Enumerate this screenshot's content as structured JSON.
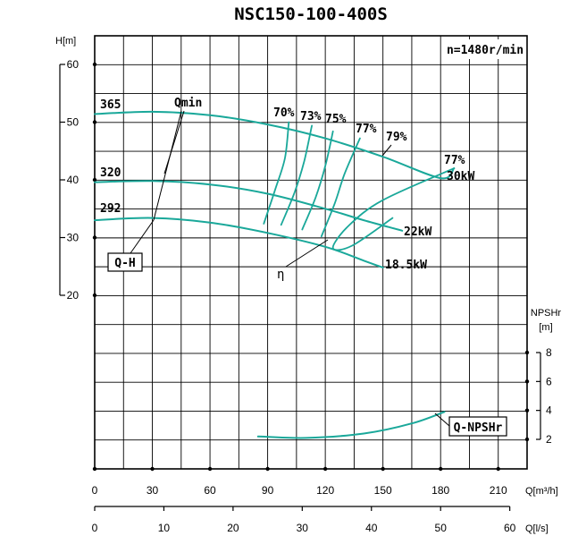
{
  "chart_data": {
    "type": "line",
    "title": "NSC150-100-400S",
    "speed_label": "n=1480r/min",
    "colors": {
      "curve": "#1aa89a",
      "ink": "#000000",
      "background": "#ffffff"
    },
    "x_flow_m3h": {
      "label": "Q[m³/h]",
      "range": [
        0,
        225
      ],
      "ticks": [
        0,
        30,
        60,
        90,
        120,
        150,
        180,
        210
      ],
      "tick_labels": [
        "0",
        "30",
        "60",
        "90",
        "120",
        "150",
        "180",
        "210"
      ]
    },
    "x_flow_ls": {
      "label": "Q[l/s]",
      "range": [
        0,
        62.5
      ],
      "ticks": [
        0,
        10,
        20,
        30,
        40,
        50,
        60
      ],
      "tick_labels": [
        "0",
        "10",
        "20",
        "30",
        "40",
        "50",
        "60"
      ]
    },
    "y_head": {
      "label": "H[m]",
      "range": [
        20,
        60
      ],
      "ticks": [
        20,
        30,
        40,
        50,
        60
      ],
      "tick_labels": [
        "20",
        "30",
        "40",
        "50",
        "60"
      ]
    },
    "y_npsh": {
      "label_top": "NPSHr",
      "label_unit": "[m]",
      "range": [
        2,
        8
      ],
      "ticks": [
        2,
        4,
        6,
        8
      ],
      "tick_labels": [
        "2",
        "4",
        "6",
        "8"
      ]
    },
    "head_curves": [
      {
        "name": "365",
        "points": [
          [
            0,
            51.4
          ],
          [
            30,
            51.8
          ],
          [
            60,
            51.2
          ],
          [
            90,
            49.6
          ],
          [
            120,
            47.2
          ],
          [
            150,
            44.0
          ],
          [
            180,
            40.3
          ],
          [
            187,
            42.0
          ]
        ]
      },
      {
        "name": "320",
        "points": [
          [
            0,
            39.6
          ],
          [
            30,
            39.8
          ],
          [
            60,
            39.2
          ],
          [
            90,
            37.6
          ],
          [
            120,
            35.0
          ],
          [
            140,
            33.0
          ],
          [
            160,
            31.2
          ]
        ]
      },
      {
        "name": "292",
        "points": [
          [
            0,
            33.0
          ],
          [
            30,
            33.4
          ],
          [
            60,
            32.6
          ],
          [
            90,
            30.8
          ],
          [
            120,
            28.4
          ],
          [
            140,
            26.0
          ],
          [
            150,
            24.8
          ]
        ]
      }
    ],
    "iso_efficiency_curves": [
      {
        "name": "70%",
        "points": [
          [
            101,
            50.0
          ],
          [
            99,
            43.8
          ],
          [
            94,
            38.4
          ],
          [
            88,
            32.4
          ]
        ]
      },
      {
        "name": "73%",
        "points": [
          [
            113,
            49.4
          ],
          [
            109,
            43.2
          ],
          [
            104,
            37.8
          ],
          [
            97,
            32.2
          ]
        ]
      },
      {
        "name": "75%",
        "points": [
          [
            124,
            48.4
          ],
          [
            120,
            42.4
          ],
          [
            115,
            37.0
          ],
          [
            108,
            31.4
          ]
        ]
      },
      {
        "name": "77%",
        "points": [
          [
            138,
            47.2
          ],
          [
            130,
            41.0
          ],
          [
            125,
            36.0
          ],
          [
            118,
            30.2
          ]
        ]
      },
      {
        "name": "eta-max",
        "points": [
          [
            187,
            42.0
          ],
          [
            150,
            36.5
          ],
          [
            132,
            32.0
          ],
          [
            124,
            28.2
          ],
          [
            134,
            28.6
          ],
          [
            155,
            33.4
          ]
        ]
      }
    ],
    "npsh_curve": {
      "name": "Q-NPSHr",
      "points": [
        [
          85,
          2.2
        ],
        [
          110,
          2.1
        ],
        [
          140,
          2.4
        ],
        [
          165,
          3.1
        ],
        [
          182,
          3.9
        ]
      ]
    },
    "labels": {
      "diameters": [
        "365",
        "320",
        "292"
      ],
      "efficiencies": [
        "70%",
        "73%",
        "75%",
        "77%",
        "79%",
        "77%"
      ],
      "powers": [
        "30kW",
        "22kW",
        "18.5kW"
      ],
      "qmin": "Qmin",
      "qh": "Q-H",
      "eta": "η",
      "qnpsh": "Q-NPSHr"
    }
  }
}
